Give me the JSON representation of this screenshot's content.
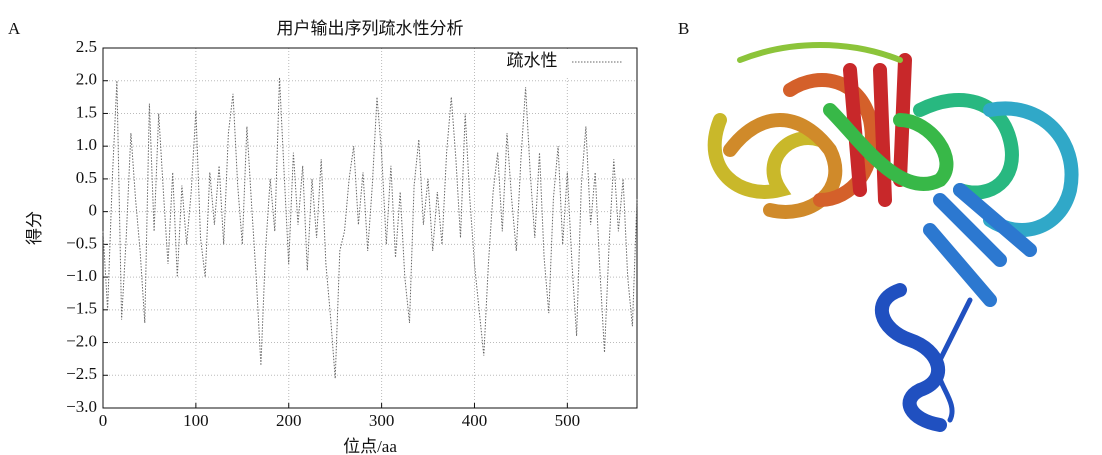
{
  "panel_labels": [
    "A",
    "B"
  ],
  "chart_data": {
    "type": "line",
    "title": "用户输出序列疏水性分析",
    "xlabel": "位点/aa",
    "ylabel": "得分",
    "x": [
      0,
      5,
      10,
      15,
      20,
      25,
      30,
      35,
      40,
      45,
      50,
      55,
      60,
      65,
      70,
      75,
      80,
      85,
      90,
      95,
      100,
      105,
      110,
      115,
      120,
      125,
      130,
      135,
      140,
      145,
      150,
      155,
      160,
      165,
      170,
      175,
      180,
      185,
      190,
      195,
      200,
      205,
      210,
      215,
      220,
      225,
      230,
      235,
      240,
      245,
      250,
      255,
      260,
      265,
      270,
      275,
      280,
      285,
      290,
      295,
      300,
      305,
      310,
      315,
      320,
      325,
      330,
      335,
      340,
      345,
      350,
      355,
      360,
      365,
      370,
      375,
      380,
      385,
      390,
      395,
      400,
      405,
      410,
      415,
      420,
      425,
      430,
      435,
      440,
      445,
      450,
      455,
      460,
      465,
      470,
      475,
      480,
      485,
      490,
      495,
      500,
      505,
      510,
      515,
      520,
      525,
      530,
      535,
      540,
      545,
      550,
      555,
      560,
      565,
      570,
      575
    ],
    "series": [
      {
        "name": "疏水性",
        "color": "#666666",
        "values": [
          -0.3,
          -1.5,
          0.5,
          2.0,
          -1.65,
          -0.4,
          1.2,
          0.2,
          -0.6,
          -1.7,
          1.65,
          -0.3,
          1.5,
          0.3,
          -0.8,
          0.6,
          -1.0,
          0.4,
          -0.5,
          0.3,
          1.55,
          -0.4,
          -1.0,
          0.6,
          -0.2,
          0.7,
          -0.5,
          1.2,
          1.8,
          0.4,
          -0.5,
          1.3,
          0.1,
          -1.0,
          -2.35,
          -0.6,
          0.5,
          -0.3,
          2.05,
          0.6,
          -0.8,
          0.9,
          -0.2,
          0.7,
          -0.9,
          0.5,
          -0.4,
          0.8,
          -0.8,
          -1.6,
          -2.55,
          -0.6,
          -0.3,
          0.5,
          1.0,
          -0.2,
          0.6,
          -0.6,
          0.4,
          1.75,
          0.9,
          -0.5,
          0.7,
          -0.7,
          0.3,
          -1.0,
          -1.7,
          0.4,
          1.1,
          -0.2,
          0.5,
          -0.6,
          0.3,
          -0.5,
          0.9,
          1.75,
          0.8,
          -0.4,
          1.5,
          0.2,
          -0.8,
          -1.5,
          -2.2,
          -0.8,
          0.3,
          0.9,
          -0.3,
          1.2,
          0.2,
          -0.6,
          0.8,
          1.9,
          0.6,
          -0.4,
          0.9,
          -0.7,
          -1.55,
          0.2,
          1.0,
          -0.5,
          0.6,
          -0.8,
          -1.9,
          0.4,
          1.3,
          -0.2,
          0.6,
          -0.9,
          -2.15,
          -0.5,
          0.8,
          -0.3,
          0.5,
          -1.0,
          -1.75,
          0.2
        ]
      }
    ],
    "xlim": [
      0,
      575
    ],
    "xticks": [
      0,
      100,
      200,
      300,
      400,
      500
    ],
    "ylim": [
      -3,
      2.5
    ],
    "yticks": [
      {
        "value": -3,
        "label": "−3.0"
      },
      {
        "value": -2.5,
        "label": "−2.5"
      },
      {
        "value": -2,
        "label": "−2.0"
      },
      {
        "value": -1.5,
        "label": "−1.5"
      },
      {
        "value": -1,
        "label": "−1.0"
      },
      {
        "value": -0.5,
        "label": "−0.5"
      },
      0,
      0.5,
      {
        "value": 1,
        "label": "1.0"
      },
      1.5,
      {
        "value": 2,
        "label": "2.0"
      },
      2.5
    ],
    "grid": true,
    "legend": "upper right"
  }
}
